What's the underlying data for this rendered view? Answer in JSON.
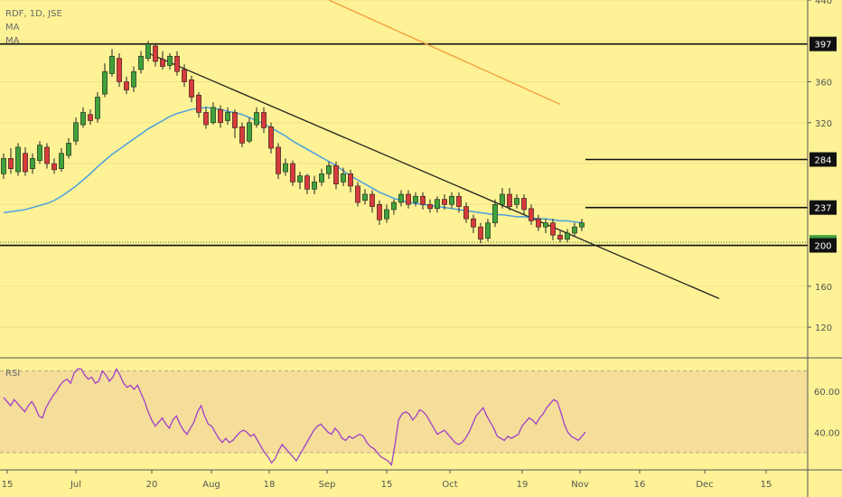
{
  "legend": {
    "symbol_line": "RDF, 1D, JSE",
    "ma1": "MA",
    "ma2": "MA"
  },
  "rsi_label": "RSI",
  "chart_data": [
    {
      "type": "candlestick",
      "ylim": [
        90,
        440
      ],
      "y_ticks": [
        "440",
        "360",
        "320",
        "160",
        "120"
      ],
      "x_ticks": [
        "15",
        "Jul",
        "20",
        "Aug",
        "18",
        "Sep",
        "15",
        "Oct",
        "19",
        "Nov",
        "16",
        "Dec",
        "15"
      ],
      "price_tags": [
        {
          "label": "397",
          "value": 397,
          "style": "dark"
        },
        {
          "label": "284",
          "value": 284,
          "style": "dark"
        },
        {
          "label": "237",
          "value": 237,
          "style": "dark"
        },
        {
          "label": "203",
          "value": 203,
          "style": "green"
        },
        {
          "label": "200",
          "value": 200,
          "style": "dark"
        }
      ],
      "horizontal_lines": [
        {
          "value": 397,
          "from": "start",
          "to": "end"
        },
        {
          "value": 284,
          "from": "Oct",
          "to": "end"
        },
        {
          "value": 237,
          "from": "Oct",
          "to": "end"
        },
        {
          "value": 200,
          "from": "start",
          "to": "end"
        }
      ],
      "trendlines": [
        {
          "color": "#222222",
          "from": [
            20,
            388
          ],
          "to": [
            99,
            148
          ]
        },
        {
          "color": "#f39a3a",
          "from": [
            45,
            440
          ],
          "to": [
            77,
            338
          ]
        }
      ],
      "ma_line": {
        "color": "#4aa0e0",
        "values": [
          232,
          233,
          234,
          235,
          237,
          239,
          241,
          244,
          248,
          253,
          258,
          264,
          270,
          277,
          283,
          289,
          294,
          299,
          304,
          309,
          314,
          318,
          322,
          326,
          329,
          331,
          333,
          334,
          335,
          334,
          333,
          331,
          330,
          328,
          325,
          322,
          319,
          315,
          311,
          307,
          302,
          298,
          294,
          290,
          286,
          282,
          278,
          273,
          268,
          264,
          260,
          256,
          252,
          249,
          246,
          244,
          242,
          241,
          240,
          239,
          238,
          237,
          236,
          235,
          234,
          233,
          232,
          231,
          230,
          230,
          229,
          228,
          228,
          227,
          226,
          226,
          225,
          224,
          224,
          223,
          222
        ]
      },
      "candles": [
        [
          270,
          285,
          265,
          290
        ],
        [
          285,
          275,
          270,
          295
        ],
        [
          272,
          296,
          268,
          300
        ],
        [
          290,
          272,
          268,
          296
        ],
        [
          275,
          285,
          270,
          290
        ],
        [
          283,
          298,
          280,
          302
        ],
        [
          296,
          280,
          275,
          300
        ],
        [
          280,
          274,
          270,
          285
        ],
        [
          275,
          290,
          272,
          295
        ],
        [
          288,
          300,
          285,
          305
        ],
        [
          302,
          320,
          298,
          325
        ],
        [
          318,
          330,
          315,
          335
        ],
        [
          328,
          322,
          318,
          333
        ],
        [
          324,
          345,
          320,
          350
        ],
        [
          348,
          370,
          345,
          378
        ],
        [
          368,
          385,
          365,
          392
        ],
        [
          383,
          360,
          355,
          388
        ],
        [
          360,
          352,
          348,
          365
        ],
        [
          355,
          370,
          350,
          375
        ],
        [
          372,
          385,
          368,
          390
        ],
        [
          383,
          397,
          380,
          400
        ],
        [
          395,
          380,
          375,
          398
        ],
        [
          382,
          375,
          372,
          390
        ],
        [
          376,
          385,
          372,
          388
        ],
        [
          385,
          370,
          366,
          390
        ],
        [
          372,
          360,
          355,
          377
        ],
        [
          362,
          345,
          340,
          366
        ],
        [
          347,
          330,
          325,
          350
        ],
        [
          330,
          318,
          314,
          335
        ],
        [
          320,
          335,
          318,
          340
        ],
        [
          333,
          320,
          315,
          337
        ],
        [
          322,
          330,
          318,
          335
        ],
        [
          330,
          315,
          305,
          333
        ],
        [
          316,
          300,
          296,
          320
        ],
        [
          302,
          320,
          300,
          325
        ],
        [
          318,
          330,
          315,
          335
        ],
        [
          330,
          315,
          310,
          335
        ],
        [
          316,
          295,
          290,
          320
        ],
        [
          296,
          270,
          265,
          300
        ],
        [
          272,
          280,
          268,
          285
        ],
        [
          280,
          262,
          258,
          283
        ],
        [
          262,
          268,
          255,
          272
        ],
        [
          268,
          255,
          250,
          270
        ],
        [
          255,
          262,
          250,
          268
        ],
        [
          262,
          270,
          258,
          275
        ],
        [
          270,
          278,
          265,
          282
        ],
        [
          278,
          260,
          255,
          282
        ],
        [
          262,
          270,
          258,
          276
        ],
        [
          270,
          258,
          252,
          274
        ],
        [
          258,
          242,
          238,
          262
        ],
        [
          244,
          250,
          240,
          255
        ],
        [
          250,
          238,
          232,
          254
        ],
        [
          240,
          225,
          220,
          244
        ],
        [
          226,
          235,
          222,
          240
        ],
        [
          235,
          242,
          230,
          245
        ],
        [
          242,
          250,
          238,
          254
        ],
        [
          250,
          240,
          236,
          254
        ],
        [
          242,
          248,
          238,
          252
        ],
        [
          248,
          240,
          235,
          252
        ],
        [
          240,
          236,
          232,
          245
        ],
        [
          236,
          245,
          232,
          248
        ],
        [
          245,
          240,
          235,
          250
        ],
        [
          240,
          248,
          236,
          252
        ],
        [
          248,
          238,
          232,
          252
        ],
        [
          238,
          226,
          222,
          242
        ],
        [
          226,
          218,
          212,
          230
        ],
        [
          218,
          206,
          202,
          222
        ],
        [
          207,
          222,
          204,
          226
        ],
        [
          222,
          240,
          218,
          245
        ],
        [
          240,
          250,
          236,
          256
        ],
        [
          250,
          238,
          234,
          256
        ],
        [
          240,
          246,
          236,
          250
        ],
        [
          246,
          235,
          230,
          250
        ],
        [
          236,
          224,
          220,
          240
        ],
        [
          226,
          218,
          214,
          230
        ],
        [
          218,
          222,
          212,
          226
        ],
        [
          222,
          210,
          205,
          226
        ],
        [
          210,
          206,
          203,
          214
        ],
        [
          206,
          212,
          203,
          216
        ],
        [
          212,
          218,
          208,
          222
        ],
        [
          218,
          222,
          214,
          226
        ]
      ]
    },
    {
      "type": "line",
      "title": "RSI",
      "ylim": [
        22,
        76
      ],
      "y_ticks": [
        "60.00",
        "40.00"
      ],
      "band": [
        30,
        70
      ],
      "color": "#a040c8",
      "values": [
        57,
        55,
        53,
        56,
        54,
        52,
        50,
        53,
        55,
        52,
        48,
        47,
        52,
        55,
        58,
        60,
        63,
        65,
        66,
        64,
        69,
        71,
        71,
        68,
        66,
        67,
        64,
        65,
        70,
        68,
        65,
        67,
        71,
        68,
        64,
        62,
        63,
        61,
        63,
        59,
        55,
        50,
        46,
        43,
        45,
        47,
        44,
        42,
        46,
        48,
        44,
        41,
        39,
        42,
        45,
        50,
        53,
        48,
        44,
        43,
        40,
        37,
        35,
        37,
        35,
        36,
        38,
        40,
        41,
        40,
        38,
        39,
        36,
        33,
        30,
        28,
        25,
        27,
        31,
        34,
        32,
        30,
        28,
        26,
        29,
        32,
        35,
        38,
        41,
        43,
        44,
        42,
        40,
        39,
        42,
        40,
        37,
        36,
        38,
        37,
        38,
        39,
        38,
        35,
        33,
        32,
        30,
        28,
        27,
        26,
        24,
        34,
        46,
        49,
        50,
        49,
        46,
        48,
        51,
        50,
        48,
        45,
        42,
        39,
        40,
        41,
        39,
        37,
        35,
        34,
        35,
        37,
        40,
        44,
        48,
        50,
        52,
        48,
        45,
        42,
        38,
        37,
        36,
        38,
        37,
        38,
        39,
        43,
        45,
        47,
        46,
        44,
        47,
        49,
        52,
        54,
        56,
        55,
        50,
        44,
        40,
        38,
        37,
        36,
        38,
        40
      ]
    }
  ]
}
